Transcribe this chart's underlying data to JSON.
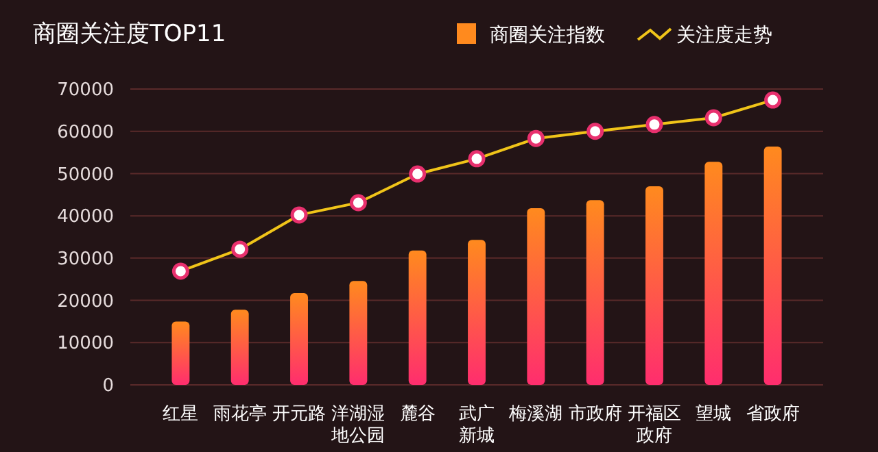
{
  "chart_data": {
    "type": "bar",
    "title": "商圈关注度TOP11",
    "categories": [
      "红星",
      "雨花亭",
      "开元路",
      "洋湖湿地公园",
      "麓谷",
      "武广新城",
      "梅溪湖",
      "市政府",
      "开福区政府",
      "望城",
      "省政府"
    ],
    "series": [
      {
        "name": "商圈关注指数",
        "color": "#ff8a1e",
        "values": [
          15000,
          17800,
          21700,
          24600,
          31800,
          34300,
          41800,
          43700,
          47000,
          52800,
          56400
        ]
      },
      {
        "name": "关注度走势",
        "type": "line",
        "color": "#f0c419",
        "values": [
          26900,
          32100,
          40200,
          43100,
          49900,
          53500,
          58300,
          60000,
          61600,
          63200,
          67400
        ]
      }
    ],
    "ylim": [
      0,
      70000
    ],
    "yticks": [
      0,
      10000,
      20000,
      30000,
      40000,
      50000,
      60000,
      70000
    ],
    "grid": "y",
    "legend": "top right",
    "marker": "circle"
  }
}
